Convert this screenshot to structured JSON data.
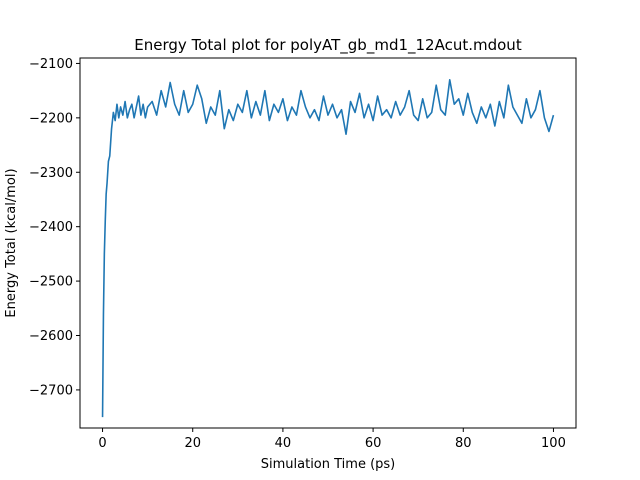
{
  "chart_data": {
    "type": "line",
    "title": "Energy Total plot for polyAT_gb_md1_12Acut.mdout",
    "xlabel": "Simulation Time (ps)",
    "ylabel": "Energy Total (kcal/mol)",
    "xlim": [
      -5,
      105
    ],
    "ylim": [
      -2770,
      -2090
    ],
    "x_ticks": [
      0,
      20,
      40,
      60,
      80,
      100
    ],
    "y_ticks": [
      -2100,
      -2200,
      -2300,
      -2400,
      -2500,
      -2600,
      -2700
    ],
    "x_tick_labels": [
      "0",
      "20",
      "40",
      "60",
      "80",
      "100"
    ],
    "y_tick_labels": [
      "−2100",
      "−2200",
      "−2300",
      "−2400",
      "−2500",
      "−2600",
      "−2700"
    ],
    "grid": false,
    "legend": "none",
    "series": [
      {
        "color": "#1f77b4",
        "x": [
          0,
          0.2,
          0.4,
          0.6,
          0.8,
          1.0,
          1.3,
          1.6,
          2.0,
          2.4,
          2.8,
          3.2,
          3.6,
          4.0,
          4.5,
          5.0,
          5.5,
          6.0,
          6.5,
          7.0,
          7.5,
          8.0,
          8.5,
          9.0,
          9.5,
          10,
          11,
          12,
          13,
          14,
          15,
          16,
          17,
          18,
          19,
          20,
          21,
          22,
          23,
          24,
          25,
          26,
          27,
          28,
          29,
          30,
          31,
          32,
          33,
          34,
          35,
          36,
          37,
          38,
          39,
          40,
          41,
          42,
          43,
          44,
          45,
          46,
          47,
          48,
          49,
          50,
          51,
          52,
          53,
          54,
          55,
          56,
          57,
          58,
          59,
          60,
          61,
          62,
          63,
          64,
          65,
          66,
          67,
          68,
          69,
          70,
          71,
          72,
          73,
          74,
          75,
          76,
          77,
          78,
          79,
          80,
          81,
          82,
          83,
          84,
          85,
          86,
          87,
          88,
          89,
          90,
          91,
          92,
          93,
          94,
          95,
          96,
          97,
          98,
          99,
          100
        ],
        "y": [
          -2750,
          -2560,
          -2450,
          -2390,
          -2340,
          -2320,
          -2280,
          -2270,
          -2220,
          -2190,
          -2205,
          -2175,
          -2200,
          -2180,
          -2195,
          -2170,
          -2200,
          -2185,
          -2175,
          -2200,
          -2180,
          -2160,
          -2195,
          -2175,
          -2200,
          -2180,
          -2170,
          -2195,
          -2150,
          -2180,
          -2135,
          -2175,
          -2195,
          -2150,
          -2190,
          -2175,
          -2140,
          -2165,
          -2210,
          -2180,
          -2195,
          -2150,
          -2220,
          -2185,
          -2205,
          -2175,
          -2190,
          -2150,
          -2200,
          -2170,
          -2195,
          -2150,
          -2205,
          -2175,
          -2190,
          -2165,
          -2205,
          -2180,
          -2195,
          -2150,
          -2180,
          -2200,
          -2185,
          -2205,
          -2160,
          -2195,
          -2175,
          -2200,
          -2185,
          -2230,
          -2170,
          -2190,
          -2155,
          -2200,
          -2175,
          -2205,
          -2160,
          -2195,
          -2185,
          -2200,
          -2170,
          -2195,
          -2180,
          -2150,
          -2195,
          -2205,
          -2165,
          -2200,
          -2190,
          -2140,
          -2185,
          -2195,
          -2130,
          -2175,
          -2165,
          -2195,
          -2155,
          -2190,
          -2210,
          -2180,
          -2200,
          -2175,
          -2215,
          -2170,
          -2200,
          -2140,
          -2180,
          -2195,
          -2210,
          -2165,
          -2200,
          -2185,
          -2150,
          -2200,
          -2225,
          -2195
        ]
      }
    ]
  }
}
